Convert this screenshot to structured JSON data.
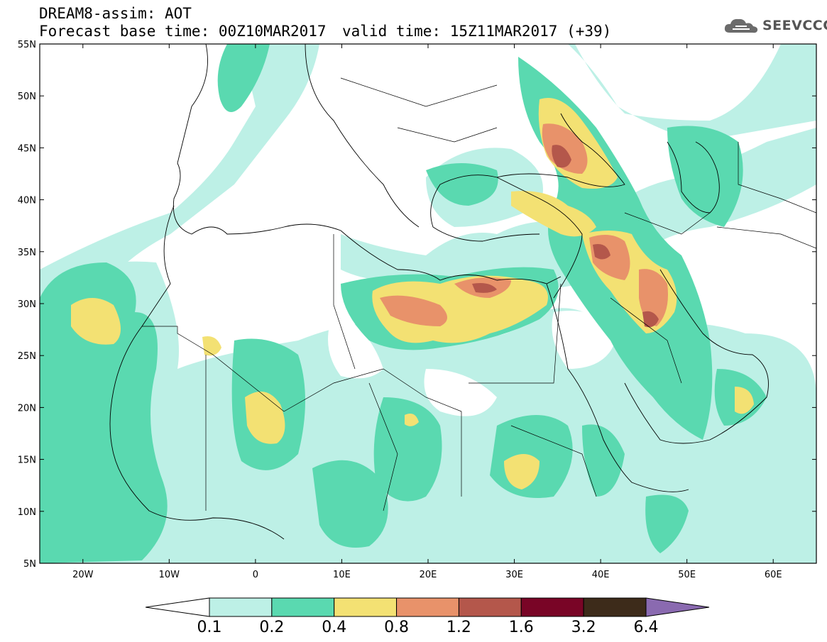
{
  "header": {
    "model_line": "DREAM8-assim: AOT",
    "base_time": "Forecast base time: 00Z10MAR2017",
    "valid_time": "valid time: 15Z11MAR2017 (+39)"
  },
  "logo": {
    "text": "SEEVCCC",
    "icon": "cloud-logo-icon"
  },
  "map": {
    "lat_ticks": [
      "55N",
      "50N",
      "45N",
      "40N",
      "35N",
      "30N",
      "25N",
      "20N",
      "15N",
      "10N",
      "5N"
    ],
    "lon_ticks": [
      "20W",
      "10W",
      "0",
      "10E",
      "20E",
      "30E",
      "40E",
      "50E",
      "60E"
    ],
    "lat_range": [
      5,
      55
    ],
    "lon_range": [
      -25,
      65
    ]
  },
  "legend": {
    "levels": [
      "0.1",
      "0.2",
      "0.4",
      "0.8",
      "1.2",
      "1.6",
      "3.2",
      "6.4"
    ],
    "colors": [
      "#ffffff",
      "#bdf0e6",
      "#5ad9b0",
      "#f3e173",
      "#e8926a",
      "#b4574b",
      "#790526",
      "#3d2b1a",
      "#8a6ab0"
    ]
  }
}
